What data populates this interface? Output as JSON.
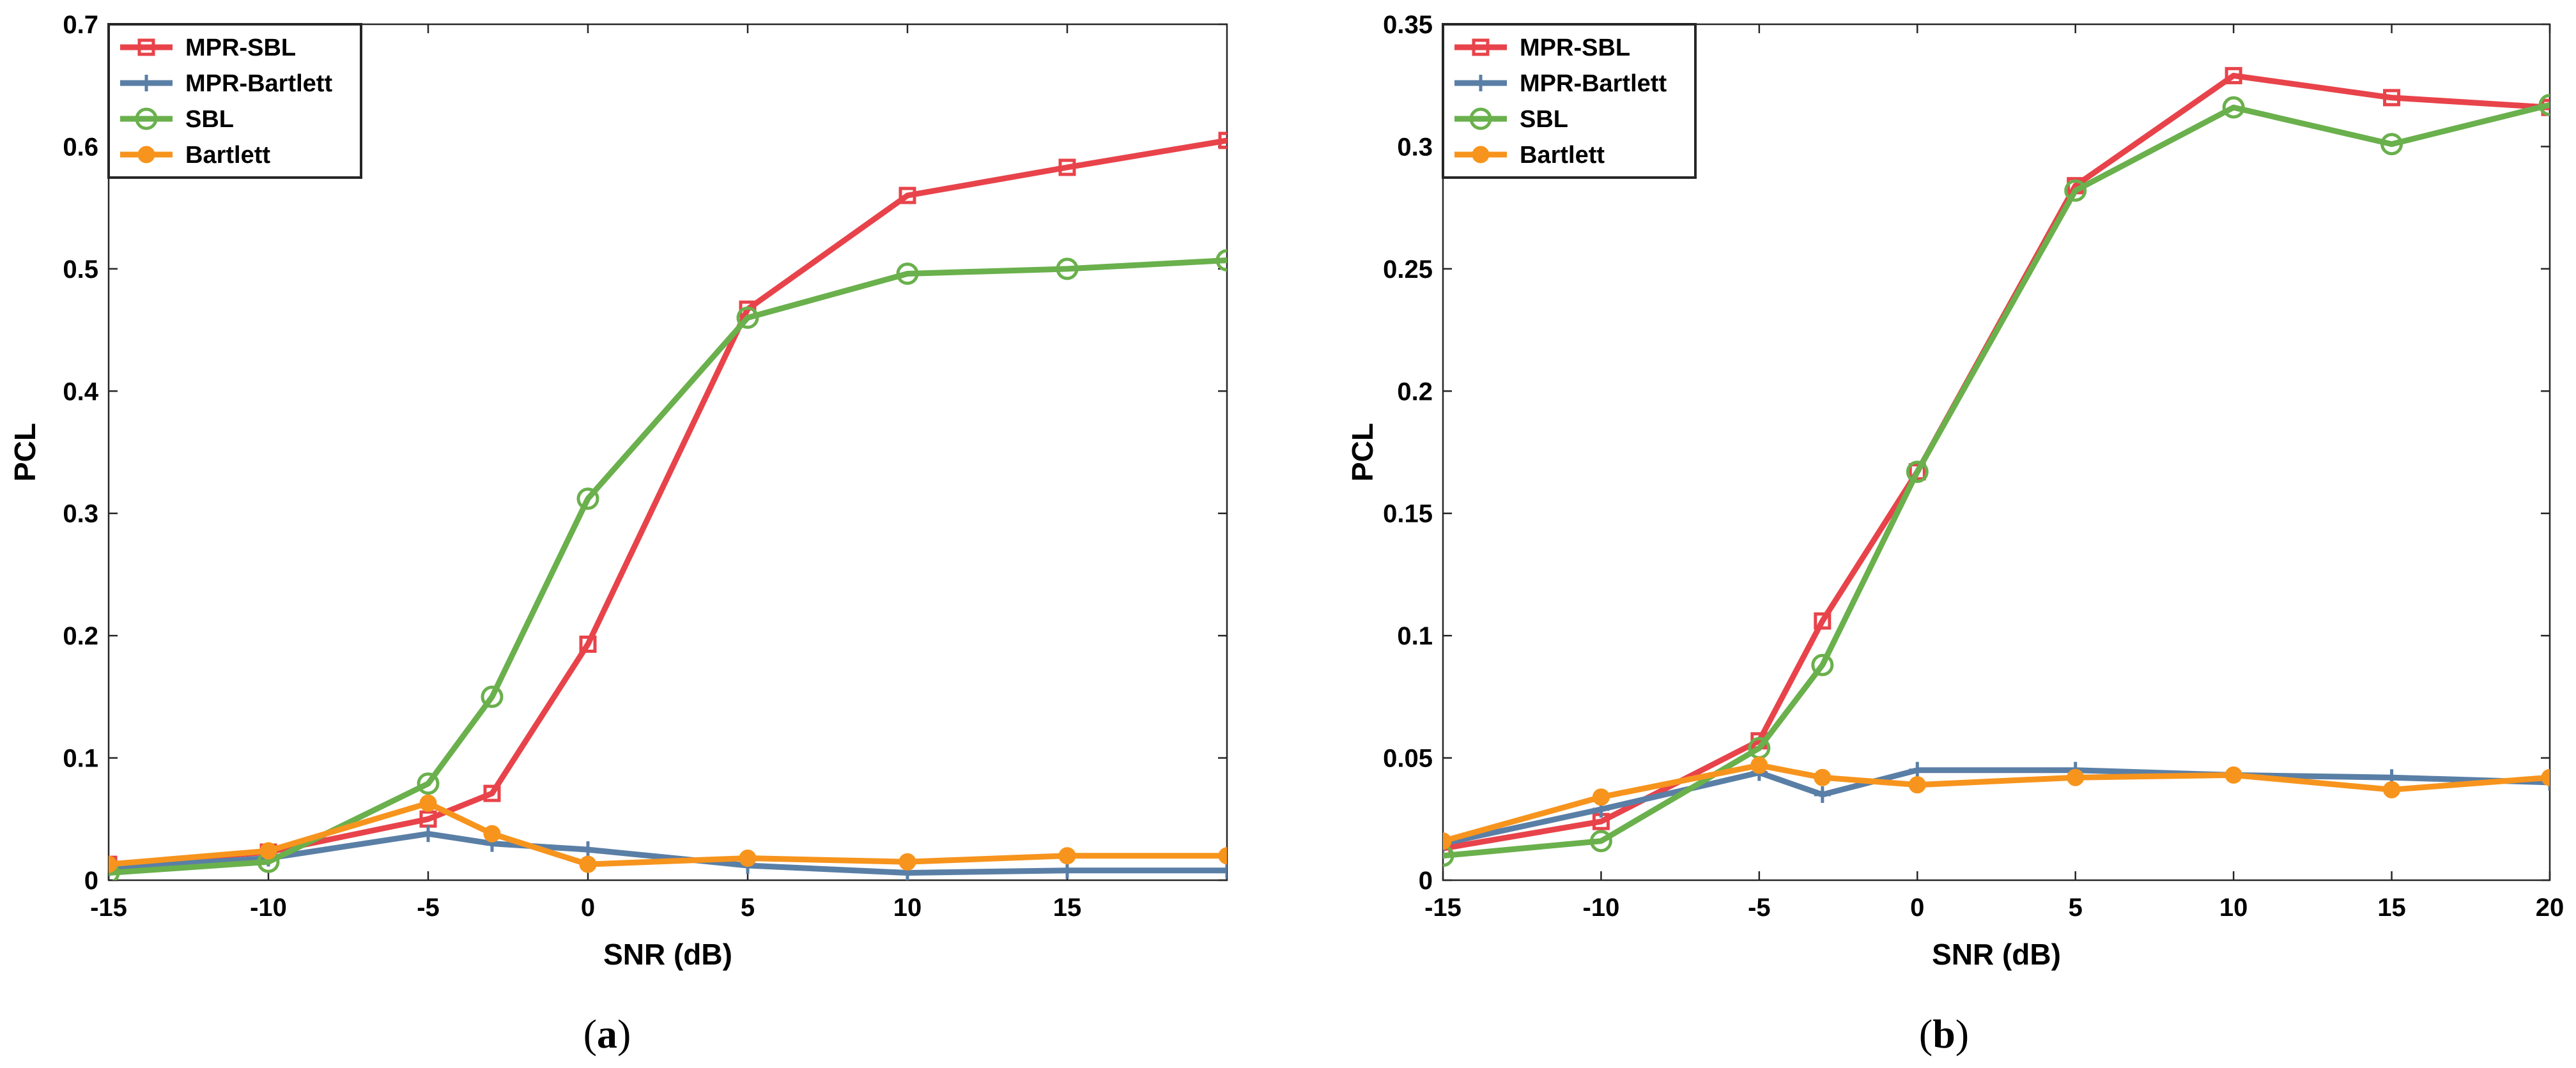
{
  "colors": {
    "MPR-SBL": "#e8434a",
    "MPR-Bartlett": "#5a7fa6",
    "SBL": "#6ab04c",
    "Bartlett": "#f7941d"
  },
  "chart_data": [
    {
      "type": "line",
      "panel": "a",
      "caption_letter": "a",
      "caption_open": "(",
      "caption_close": ")",
      "xlabel": "SNR (dB)",
      "ylabel": "PCL",
      "xlim": [
        -15,
        20
      ],
      "ylim": [
        0,
        0.7
      ],
      "xticks": [
        -15,
        -10,
        -5,
        0,
        5,
        10,
        15
      ],
      "xtick_labels": [
        "-15",
        "-10",
        "-5",
        "0",
        "5",
        "10",
        "15"
      ],
      "yticks": [
        0,
        0.1,
        0.2,
        0.3,
        0.4,
        0.5,
        0.6,
        0.7
      ],
      "ytick_labels": [
        "0",
        "0.1",
        "0.2",
        "0.3",
        "0.4",
        "0.5",
        "0.6",
        "0.7"
      ],
      "legend_position": "top-left",
      "series": [
        {
          "name": "MPR-SBL",
          "marker": "square",
          "x": [
            -15,
            -10,
            -5,
            -3,
            0,
            5,
            10,
            15,
            20
          ],
          "values": [
            0.013,
            0.023,
            0.05,
            0.071,
            0.193,
            0.467,
            0.56,
            0.583,
            0.605
          ]
        },
        {
          "name": "MPR-Bartlett",
          "marker": "plus",
          "x": [
            -15,
            -10,
            -5,
            -3,
            0,
            5,
            10,
            15,
            20
          ],
          "values": [
            0.01,
            0.018,
            0.038,
            0.03,
            0.025,
            0.012,
            0.006,
            0.008,
            0.008
          ]
        },
        {
          "name": "SBL",
          "marker": "circle",
          "x": [
            -15,
            -10,
            -5,
            -3,
            0,
            5,
            10,
            15,
            20
          ],
          "values": [
            0.006,
            0.015,
            0.079,
            0.15,
            0.312,
            0.46,
            0.496,
            0.5,
            0.507
          ]
        },
        {
          "name": "Bartlett",
          "marker": "asterisk",
          "x": [
            -15,
            -10,
            -5,
            -3,
            0,
            5,
            10,
            15,
            20
          ],
          "values": [
            0.013,
            0.024,
            0.063,
            0.038,
            0.013,
            0.018,
            0.015,
            0.02,
            0.02
          ]
        }
      ]
    },
    {
      "type": "line",
      "panel": "b",
      "caption_letter": "b",
      "caption_open": "(",
      "caption_close": ")",
      "xlabel": "SNR (dB)",
      "ylabel": "PCL",
      "xlim": [
        -15,
        20
      ],
      "ylim": [
        0,
        0.35
      ],
      "xticks": [
        -15,
        -10,
        -5,
        0,
        5,
        10,
        15,
        20
      ],
      "xtick_labels": [
        "-15",
        "-10",
        "-5",
        "0",
        "5",
        "10",
        "15",
        "20"
      ],
      "yticks": [
        0,
        0.05,
        0.1,
        0.15,
        0.2,
        0.25,
        0.3,
        0.35
      ],
      "ytick_labels": [
        "0",
        "0.05",
        "0.1",
        "0.15",
        "0.2",
        "0.25",
        "0.3",
        "0.35"
      ],
      "legend_position": "top-left",
      "series": [
        {
          "name": "MPR-SBL",
          "marker": "square",
          "x": [
            -15,
            -10,
            -5,
            -3,
            0,
            5,
            10,
            15,
            20
          ],
          "values": [
            0.013,
            0.024,
            0.057,
            0.106,
            0.167,
            0.284,
            0.329,
            0.32,
            0.316
          ]
        },
        {
          "name": "MPR-Bartlett",
          "marker": "plus",
          "x": [
            -15,
            -10,
            -5,
            -3,
            0,
            5,
            10,
            15,
            20
          ],
          "values": [
            0.015,
            0.029,
            0.044,
            0.035,
            0.045,
            0.045,
            0.043,
            0.042,
            0.04
          ]
        },
        {
          "name": "SBL",
          "marker": "circle",
          "x": [
            -15,
            -10,
            -5,
            -3,
            0,
            5,
            10,
            15,
            20
          ],
          "values": [
            0.01,
            0.016,
            0.054,
            0.088,
            0.167,
            0.282,
            0.316,
            0.301,
            0.317
          ]
        },
        {
          "name": "Bartlett",
          "marker": "asterisk",
          "x": [
            -15,
            -10,
            -5,
            -3,
            0,
            5,
            10,
            15,
            20
          ],
          "values": [
            0.016,
            0.034,
            0.047,
            0.042,
            0.039,
            0.042,
            0.043,
            0.037,
            0.042
          ]
        }
      ]
    }
  ]
}
